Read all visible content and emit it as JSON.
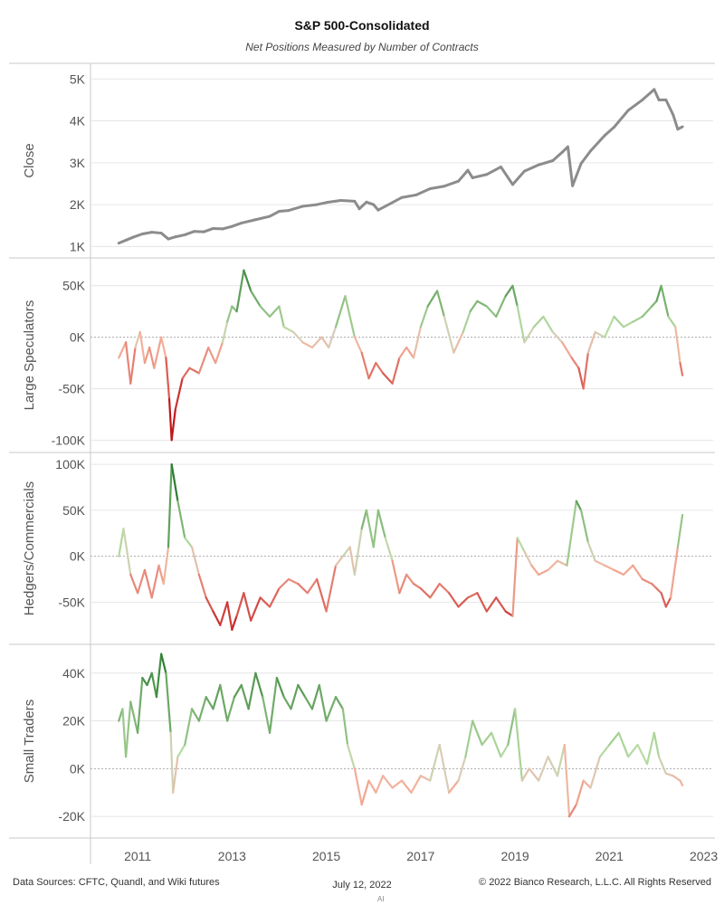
{
  "title": "S&P 500-Consolidated",
  "subtitle": "Net Positions Measured by Number of Contracts",
  "footer": {
    "left": "Data Sources: CFTC, Quandl, and Wiki futures",
    "center": "July 12, 2022",
    "right": "© 2022 Bianco Research, L.L.C. All Rights Reserved",
    "mark": "AI"
  },
  "colors": {
    "close_line": "#8c8c8c",
    "positive_dark": "#2e7d32",
    "positive_light": "#b7dca3",
    "neutral": "#d8cdb8",
    "negative_light": "#f4b09a",
    "negative_dark": "#c2181b",
    "grid": "#e6e6e6",
    "zero_line": "#aaaaaa",
    "border": "#c8c8c8"
  },
  "chart_data": {
    "type": "line",
    "x_axis": {
      "ticks": [
        "2011",
        "2013",
        "2015",
        "2017",
        "2019",
        "2021",
        "2023"
      ],
      "range": [
        2010.0,
        2023.2
      ]
    },
    "panels": [
      {
        "ylabel": "Close",
        "y_ticks": [
          {
            "value": 1000,
            "label": "1K"
          },
          {
            "value": 2000,
            "label": "2K"
          },
          {
            "value": 3000,
            "label": "3K"
          },
          {
            "value": 4000,
            "label": "4K"
          },
          {
            "value": 5000,
            "label": "5K"
          }
        ],
        "ylim": [
          900,
          5200
        ],
        "color_mode": "solid",
        "zero_line": false,
        "series": {
          "x": [
            2010.6,
            2010.75,
            2010.9,
            2011.1,
            2011.3,
            2011.5,
            2011.65,
            2011.8,
            2012.0,
            2012.2,
            2012.4,
            2012.6,
            2012.8,
            2013.0,
            2013.2,
            2013.5,
            2013.8,
            2014.0,
            2014.2,
            2014.5,
            2014.8,
            2015.0,
            2015.3,
            2015.6,
            2015.7,
            2015.85,
            2016.0,
            2016.1,
            2016.4,
            2016.6,
            2016.9,
            2017.2,
            2017.5,
            2017.8,
            2018.0,
            2018.1,
            2018.4,
            2018.7,
            2018.95,
            2019.2,
            2019.4,
            2019.5,
            2019.8,
            2020.0,
            2020.12,
            2020.22,
            2020.4,
            2020.6,
            2020.9,
            2021.1,
            2021.4,
            2021.7,
            2021.95,
            2022.05,
            2022.2,
            2022.35,
            2022.45,
            2022.55
          ],
          "y": [
            1080,
            1150,
            1220,
            1300,
            1340,
            1320,
            1180,
            1230,
            1280,
            1360,
            1350,
            1430,
            1420,
            1480,
            1560,
            1640,
            1720,
            1840,
            1860,
            1960,
            2000,
            2050,
            2100,
            2080,
            1900,
            2060,
            2000,
            1870,
            2050,
            2170,
            2230,
            2380,
            2440,
            2560,
            2820,
            2640,
            2720,
            2900,
            2480,
            2800,
            2900,
            2950,
            3050,
            3250,
            3380,
            2450,
            2980,
            3280,
            3650,
            3850,
            4250,
            4500,
            4750,
            4500,
            4500,
            4150,
            3800,
            3860
          ]
        }
      },
      {
        "ylabel": "Large Speculators",
        "y_ticks": [
          {
            "value": -100000,
            "label": "-100K"
          },
          {
            "value": -50000,
            "label": "-50K"
          },
          {
            "value": 0,
            "label": "0K"
          },
          {
            "value": 50000,
            "label": "50K"
          }
        ],
        "ylim": [
          -105000,
          70000
        ],
        "color_mode": "diverging",
        "color_scale": 65000,
        "zero_line": true,
        "series": {
          "x": [
            2010.6,
            2010.75,
            2010.85,
            2010.95,
            2011.05,
            2011.15,
            2011.25,
            2011.35,
            2011.5,
            2011.6,
            2011.67,
            2011.72,
            2011.8,
            2011.95,
            2012.1,
            2012.3,
            2012.5,
            2012.65,
            2012.8,
            2012.9,
            2013.0,
            2013.1,
            2013.25,
            2013.4,
            2013.6,
            2013.8,
            2014.0,
            2014.1,
            2014.3,
            2014.5,
            2014.7,
            2014.9,
            2015.05,
            2015.2,
            2015.4,
            2015.6,
            2015.75,
            2015.9,
            2016.05,
            2016.2,
            2016.4,
            2016.55,
            2016.7,
            2016.85,
            2017.0,
            2017.15,
            2017.35,
            2017.5,
            2017.7,
            2017.9,
            2018.05,
            2018.2,
            2018.4,
            2018.6,
            2018.8,
            2018.95,
            2019.05,
            2019.2,
            2019.4,
            2019.6,
            2019.8,
            2020.0,
            2020.2,
            2020.35,
            2020.45,
            2020.55,
            2020.7,
            2020.9,
            2021.1,
            2021.3,
            2021.5,
            2021.7,
            2021.9,
            2022.0,
            2022.1,
            2022.25,
            2022.4,
            2022.5,
            2022.55
          ],
          "y": [
            -20000,
            -5000,
            -45000,
            -10000,
            5000,
            -25000,
            -10000,
            -30000,
            0,
            -20000,
            -60000,
            -100000,
            -70000,
            -40000,
            -30000,
            -35000,
            -10000,
            -25000,
            -5000,
            15000,
            30000,
            25000,
            65000,
            45000,
            30000,
            20000,
            30000,
            10000,
            5000,
            -5000,
            -10000,
            0,
            -10000,
            10000,
            40000,
            0,
            -15000,
            -40000,
            -25000,
            -35000,
            -45000,
            -20000,
            -10000,
            -20000,
            10000,
            30000,
            45000,
            20000,
            -15000,
            5000,
            25000,
            35000,
            30000,
            20000,
            40000,
            50000,
            30000,
            -5000,
            10000,
            20000,
            5000,
            -5000,
            -20000,
            -30000,
            -50000,
            -15000,
            5000,
            0,
            20000,
            10000,
            15000,
            20000,
            30000,
            35000,
            50000,
            20000,
            10000,
            -25000,
            -37000
          ]
        }
      },
      {
        "ylabel": "Hedgers/Commercials",
        "y_ticks": [
          {
            "value": -50000,
            "label": "-50K"
          },
          {
            "value": 0,
            "label": "0K"
          },
          {
            "value": 50000,
            "label": "50K"
          },
          {
            "value": 100000,
            "label": "100K"
          }
        ],
        "ylim": [
          -88000,
          105000
        ],
        "color_mode": "diverging",
        "color_scale": 80000,
        "zero_line": true,
        "series": {
          "x": [
            2010.6,
            2010.7,
            2010.85,
            2011.0,
            2011.15,
            2011.3,
            2011.45,
            2011.55,
            2011.65,
            2011.72,
            2011.85,
            2012.0,
            2012.15,
            2012.3,
            2012.45,
            2012.6,
            2012.75,
            2012.9,
            2013.0,
            2013.1,
            2013.25,
            2013.4,
            2013.6,
            2013.8,
            2014.0,
            2014.2,
            2014.4,
            2014.6,
            2014.8,
            2015.0,
            2015.2,
            2015.35,
            2015.5,
            2015.6,
            2015.75,
            2015.85,
            2016.0,
            2016.1,
            2016.25,
            2016.4,
            2016.55,
            2016.7,
            2016.85,
            2017.0,
            2017.2,
            2017.4,
            2017.6,
            2017.8,
            2018.0,
            2018.2,
            2018.4,
            2018.6,
            2018.8,
            2018.95,
            2019.05,
            2019.2,
            2019.35,
            2019.5,
            2019.7,
            2019.9,
            2020.1,
            2020.3,
            2020.4,
            2020.55,
            2020.7,
            2020.9,
            2021.1,
            2021.3,
            2021.5,
            2021.7,
            2021.9,
            2022.0,
            2022.1,
            2022.2,
            2022.3,
            2022.45,
            2022.55
          ],
          "y": [
            0,
            30000,
            -20000,
            -40000,
            -15000,
            -45000,
            -10000,
            -30000,
            10000,
            100000,
            60000,
            20000,
            10000,
            -20000,
            -45000,
            -60000,
            -75000,
            -50000,
            -80000,
            -65000,
            -40000,
            -70000,
            -45000,
            -55000,
            -35000,
            -25000,
            -30000,
            -40000,
            -25000,
            -60000,
            -10000,
            0,
            10000,
            -20000,
            30000,
            50000,
            10000,
            50000,
            20000,
            -5000,
            -40000,
            -20000,
            -30000,
            -35000,
            -45000,
            -30000,
            -40000,
            -55000,
            -45000,
            -40000,
            -60000,
            -45000,
            -60000,
            -65000,
            20000,
            5000,
            -10000,
            -20000,
            -15000,
            -5000,
            -10000,
            60000,
            50000,
            15000,
            -5000,
            -10000,
            -15000,
            -20000,
            -10000,
            -25000,
            -30000,
            -35000,
            -40000,
            -55000,
            -45000,
            10000,
            45000
          ]
        }
      },
      {
        "ylabel": "Small Traders",
        "y_ticks": [
          {
            "value": -20000,
            "label": "-20K"
          },
          {
            "value": 0,
            "label": "0K"
          },
          {
            "value": 20000,
            "label": "20K"
          },
          {
            "value": 40000,
            "label": "40K"
          }
        ],
        "ylim": [
          -26000,
          49000
        ],
        "color_mode": "diverging",
        "color_scale": 45000,
        "zero_line": true,
        "series": {
          "x": [
            2010.6,
            2010.68,
            2010.75,
            2010.85,
            2011.0,
            2011.1,
            2011.2,
            2011.3,
            2011.4,
            2011.5,
            2011.6,
            2011.7,
            2011.75,
            2011.85,
            2012.0,
            2012.15,
            2012.3,
            2012.45,
            2012.6,
            2012.75,
            2012.9,
            2013.05,
            2013.2,
            2013.35,
            2013.5,
            2013.65,
            2013.8,
            2013.95,
            2014.1,
            2014.25,
            2014.4,
            2014.55,
            2014.7,
            2014.85,
            2015.0,
            2015.2,
            2015.35,
            2015.45,
            2015.6,
            2015.75,
            2015.9,
            2016.05,
            2016.2,
            2016.4,
            2016.6,
            2016.8,
            2017.0,
            2017.2,
            2017.4,
            2017.6,
            2017.8,
            2017.95,
            2018.1,
            2018.3,
            2018.5,
            2018.7,
            2018.85,
            2019.0,
            2019.15,
            2019.3,
            2019.5,
            2019.7,
            2019.9,
            2020.05,
            2020.15,
            2020.3,
            2020.45,
            2020.6,
            2020.8,
            2021.0,
            2021.2,
            2021.4,
            2021.6,
            2021.8,
            2021.95,
            2022.05,
            2022.2,
            2022.35,
            2022.5,
            2022.55
          ],
          "y": [
            20000,
            25000,
            5000,
            28000,
            15000,
            38000,
            35000,
            40000,
            30000,
            48000,
            40000,
            15000,
            -10000,
            5000,
            10000,
            25000,
            20000,
            30000,
            25000,
            35000,
            20000,
            30000,
            35000,
            25000,
            40000,
            30000,
            15000,
            38000,
            30000,
            25000,
            35000,
            30000,
            25000,
            35000,
            20000,
            30000,
            25000,
            10000,
            0,
            -15000,
            -5000,
            -10000,
            -3000,
            -8000,
            -5000,
            -10000,
            -3000,
            -5000,
            10000,
            -10000,
            -5000,
            5000,
            20000,
            10000,
            15000,
            5000,
            10000,
            25000,
            -5000,
            0,
            -5000,
            5000,
            -3000,
            10000,
            -20000,
            -15000,
            -5000,
            -8000,
            5000,
            10000,
            15000,
            5000,
            10000,
            2000,
            15000,
            5000,
            -2000,
            -3000,
            -5000,
            -7000
          ]
        }
      }
    ]
  }
}
